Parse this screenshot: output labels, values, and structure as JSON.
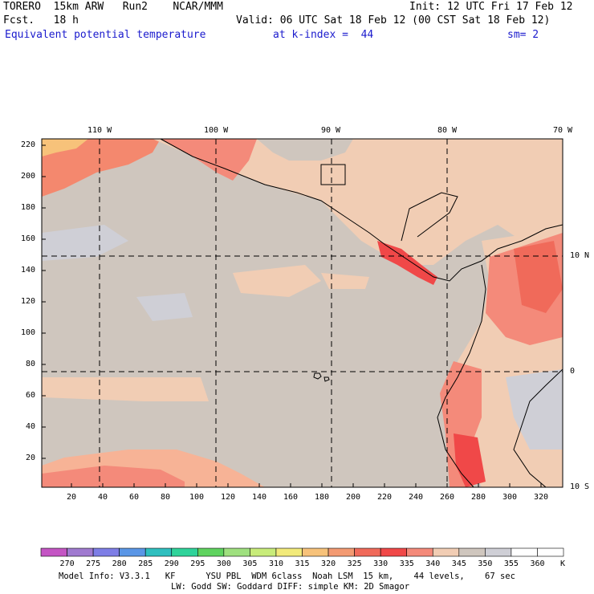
{
  "header": {
    "line1_left": "TORERO  15km ARW   Run2    NCAR/MMM",
    "line1_right": "Init: 12 UTC Fri 17 Feb 12",
    "line2_left": "Fcst.   18 h",
    "line2_right": "Valid: 06 UTC Sat 18 Feb 12 (00 CST Sat 18 Feb 12)",
    "field_label": "Equivalent potential temperature",
    "level_label": "at k-index =  44",
    "smooth_label": "sm= 2"
  },
  "map": {
    "lon_labels": [
      "110 W",
      "100 W",
      "90 W",
      "80 W",
      "70 W"
    ],
    "lat_labels": [
      "10 N",
      "0",
      "10 S"
    ],
    "y_grid_labels": [
      "220",
      "200",
      "180",
      "160",
      "140",
      "120",
      "100",
      "80",
      "60",
      "40",
      "20"
    ],
    "x_grid_labels": [
      "20",
      "40",
      "60",
      "80",
      "100",
      "120",
      "140",
      "160",
      "180",
      "200",
      "220",
      "240",
      "260",
      "280",
      "300",
      "320"
    ]
  },
  "colorbar": {
    "labels": [
      "270",
      "275",
      "280",
      "285",
      "290",
      "295",
      "300",
      "305",
      "310",
      "315",
      "320",
      "325",
      "330",
      "335",
      "340",
      "345",
      "350",
      "355",
      "360"
    ],
    "unit": "K",
    "colors": [
      "#c455c4",
      "#a07ad0",
      "#7e7ee6",
      "#5a96e6",
      "#2fbfbf",
      "#2fd39a",
      "#5fd35f",
      "#9fe07f",
      "#c8ec7a",
      "#f2ea7a",
      "#f7c27a",
      "#f39a72",
      "#f06a5a",
      "#f04848",
      "#f48a7a",
      "#f1cdb4",
      "#cfc6be",
      "#cfcfd6",
      "#ffffff"
    ]
  },
  "footer": {
    "line1": "Model Info: V3.3.1   KF      YSU PBL  WDM 6class  Noah LSM  15 km,    44 levels,    67 sec",
    "line2": "LW: Godd SW: Goddard DIFF: simple KM: 2D Smagor"
  }
}
